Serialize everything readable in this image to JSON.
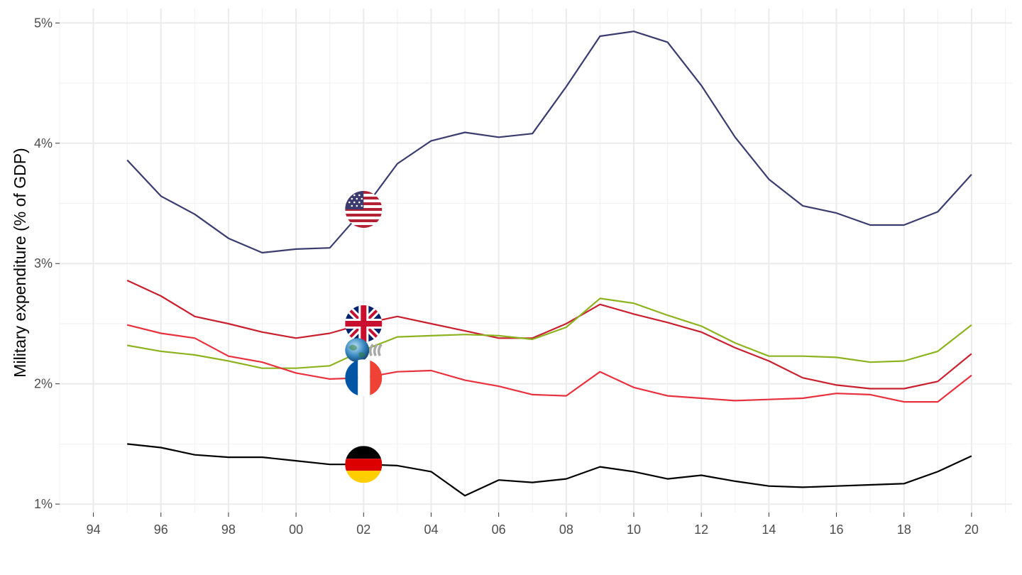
{
  "chart_data": {
    "type": "line",
    "ylabel": "Military expenditure (% of GDP)",
    "xlabel": "",
    "xlim": [
      1993.0,
      2021.2
    ],
    "ylim": [
      0.93,
      5.12
    ],
    "x_ticks": [
      1994,
      1996,
      1998,
      2000,
      2002,
      2004,
      2006,
      2008,
      2010,
      2012,
      2014,
      2016,
      2018,
      2020
    ],
    "x_tick_labels": [
      "94",
      "96",
      "98",
      "00",
      "02",
      "04",
      "06",
      "08",
      "10",
      "12",
      "14",
      "16",
      "18",
      "20"
    ],
    "y_ticks": [
      1,
      2,
      3,
      4,
      5
    ],
    "y_tick_labels": [
      "1%",
      "2%",
      "3%",
      "4%",
      "5%"
    ],
    "grid": true,
    "legend": "none",
    "x": [
      1995,
      1996,
      1997,
      1998,
      1999,
      2000,
      2001,
      2002,
      2003,
      2004,
      2005,
      2006,
      2007,
      2008,
      2009,
      2010,
      2011,
      2012,
      2013,
      2014,
      2015,
      2016,
      2017,
      2018,
      2019,
      2020
    ],
    "series": [
      {
        "icon": "us-flag-icon",
        "color": "#3b3c6e",
        "values": [
          3.86,
          3.56,
          3.41,
          3.21,
          3.09,
          3.12,
          3.13,
          3.45,
          3.83,
          4.02,
          4.09,
          4.05,
          4.08,
          4.47,
          4.89,
          4.93,
          4.84,
          4.48,
          4.05,
          3.7,
          3.48,
          3.42,
          3.32,
          3.32,
          3.43,
          3.74
        ]
      },
      {
        "icon": "uk-flag-icon",
        "color": "#c8202f",
        "values": [
          2.86,
          2.73,
          2.56,
          2.5,
          2.43,
          2.38,
          2.42,
          2.5,
          2.56,
          2.5,
          2.44,
          2.38,
          2.38,
          2.5,
          2.66,
          2.58,
          2.51,
          2.43,
          2.3,
          2.19,
          2.05,
          1.99,
          1.96,
          1.96,
          2.02,
          2.25
        ]
      },
      {
        "icon": "oecd-icon",
        "color": "#8db320",
        "values": [
          2.32,
          2.27,
          2.24,
          2.19,
          2.13,
          2.13,
          2.15,
          2.28,
          2.39,
          2.4,
          2.41,
          2.4,
          2.37,
          2.47,
          2.71,
          2.67,
          2.57,
          2.48,
          2.34,
          2.23,
          2.23,
          2.22,
          2.18,
          2.19,
          2.27,
          2.49
        ]
      },
      {
        "icon": "france-flag-icon",
        "color": "#e8313e",
        "values": [
          2.49,
          2.42,
          2.38,
          2.23,
          2.18,
          2.09,
          2.04,
          2.05,
          2.1,
          2.11,
          2.03,
          1.98,
          1.91,
          1.9,
          2.1,
          1.97,
          1.9,
          1.88,
          1.86,
          1.87,
          1.88,
          1.92,
          1.91,
          1.85,
          1.85,
          2.07
        ]
      },
      {
        "icon": "germany-flag-icon",
        "color": "#000000",
        "values": [
          1.5,
          1.47,
          1.41,
          1.39,
          1.39,
          1.36,
          1.33,
          1.33,
          1.32,
          1.27,
          1.07,
          1.2,
          1.18,
          1.21,
          1.31,
          1.27,
          1.21,
          1.24,
          1.19,
          1.15,
          1.14,
          1.15,
          1.16,
          1.17,
          1.27,
          1.4
        ]
      }
    ],
    "flag_markers": [
      {
        "icon": "us-flag-icon",
        "x": 2002,
        "y": 3.45
      },
      {
        "icon": "uk-flag-icon",
        "x": 2002,
        "y": 2.5
      },
      {
        "icon": "oecd-icon",
        "x": 2002,
        "y": 2.28
      },
      {
        "icon": "france-flag-icon",
        "x": 2002,
        "y": 2.05
      },
      {
        "icon": "germany-flag-icon",
        "x": 2002,
        "y": 1.33
      }
    ]
  }
}
